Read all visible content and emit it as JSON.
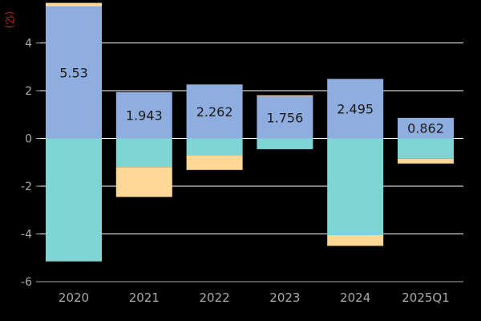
{
  "chart_data": {
    "type": "bar",
    "stacked": true,
    "categories": [
      "2020",
      "2021",
      "2022",
      "2023",
      "2024",
      "2025Q1"
    ],
    "series": [
      {
        "color": "#8fadde",
        "values": [
          5.53,
          1.943,
          2.262,
          1.756,
          2.495,
          0.862
        ]
      },
      {
        "color": "#ffd898",
        "values": [
          0.15,
          0,
          0,
          0.05,
          0,
          0
        ]
      },
      {
        "color": "#7fd4d4",
        "values": [
          -5.15,
          -1.2,
          -0.7,
          -0.45,
          -4.05,
          -0.85
        ]
      },
      {
        "color": "#ffd898",
        "values": [
          0,
          -1.25,
          -0.62,
          0,
          -0.45,
          -0.2
        ]
      }
    ],
    "data_labels": [
      "5.53",
      "1.943",
      "2.262",
      "1.756",
      "2.495",
      "0.862"
    ],
    "y_ticks": [
      "-6",
      "-4",
      "-2",
      "0",
      "2",
      "4"
    ],
    "ylim": [
      -6,
      5.8
    ],
    "y_unit_label": "(亿)",
    "grid": true,
    "background": "#000000",
    "grid_color": "#ffffff",
    "axis_label_color": "#aaaaaa"
  }
}
